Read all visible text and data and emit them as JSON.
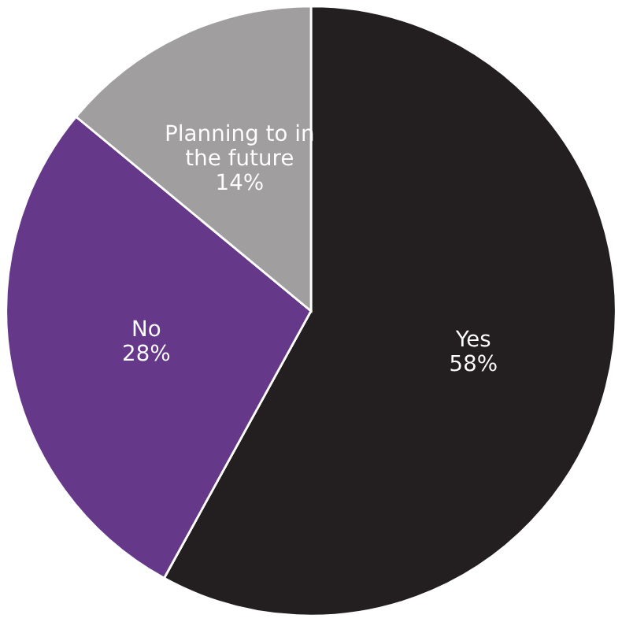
{
  "chart_data": {
    "type": "pie",
    "categories": [
      "Yes",
      "No",
      "Planning to in\nthe future"
    ],
    "values": [
      58,
      28,
      14
    ],
    "colors": [
      "#231f20",
      "#66388a",
      "#a09e9f"
    ],
    "value_labels": [
      "58%",
      "28%",
      "14%"
    ]
  }
}
